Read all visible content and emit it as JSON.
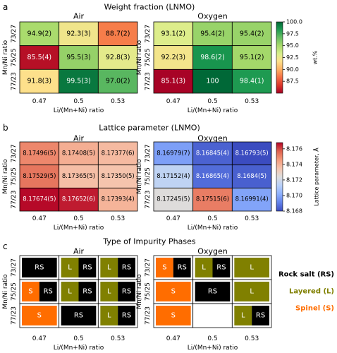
{
  "chart_data": [
    {
      "type": "heatmap",
      "panel_letter": "a",
      "title": "Weight fraction (LNMO)",
      "xlabel": "Li/(Mn+Ni) ratio",
      "ylabel": "Mn/Ni ratio",
      "x_categories": [
        "0.47",
        "0.5",
        "0.53"
      ],
      "y_categories": [
        "73/27",
        "75/25",
        "77/23"
      ],
      "colorbar": {
        "label": "wt.%",
        "range": [
          85.0,
          100.0
        ],
        "ticks": [
          "100.0",
          "97.5",
          "95.0",
          "92.5",
          "90.0",
          "87.5"
        ],
        "colormap": "RdYlGn"
      },
      "subplots": [
        {
          "name": "Air",
          "values": [
            [
              94.9,
              92.3,
              88.7
            ],
            [
              85.5,
              95.5,
              92.8
            ],
            [
              91.8,
              99.5,
              97.0
            ]
          ],
          "labels": [
            [
              "94.9(2)",
              "92.3(3)",
              "88.7(2)"
            ],
            [
              "85.5(4)",
              "95.5(3)",
              "92.8(3)"
            ],
            [
              "91.8(3)",
              "99.5(3)",
              "97.0(2)"
            ]
          ]
        },
        {
          "name": "Oxygen",
          "values": [
            [
              93.1,
              95.4,
              95.4
            ],
            [
              92.2,
              98.6,
              95.1
            ],
            [
              85.1,
              100,
              98.4
            ]
          ],
          "labels": [
            [
              "93.1(2)",
              "95.4(2)",
              "95.4(2)"
            ],
            [
              "92.2(3)",
              "98.6(2)",
              "95.1(2)"
            ],
            [
              "85.1(3)",
              "100",
              "98.4(1)"
            ]
          ]
        }
      ]
    },
    {
      "type": "heatmap",
      "panel_letter": "b",
      "title": "Lattice parameter (LNMO)",
      "xlabel": "Li/(Mn+Ni) ratio",
      "ylabel": "Mn/Ni ratio",
      "x_categories": [
        "0.47",
        "0.5",
        "0.53"
      ],
      "y_categories": [
        "73/27",
        "75/25",
        "77/23"
      ],
      "colorbar": {
        "label": "Lattice parameter, Å",
        "range": [
          8.168,
          8.1768
        ],
        "ticks": [
          "8.176",
          "8.174",
          "8.172",
          "8.170",
          "8.168"
        ],
        "colormap": "coolwarm"
      },
      "subplots": [
        {
          "name": "Air",
          "values": [
            [
              8.17496,
              8.17408,
              8.17377
            ],
            [
              8.17529,
              8.17365,
              8.1735
            ],
            [
              8.17674,
              8.17652,
              8.17393
            ]
          ],
          "labels": [
            [
              "8.17496(5)",
              "8.17408(5)",
              "8.17377(6)"
            ],
            [
              "8.17529(5)",
              "8.17365(5)",
              "8.17350(5)"
            ],
            [
              "8.17674(5)",
              "8.17652(6)",
              "8.17393(4)"
            ]
          ]
        },
        {
          "name": "Oxygen",
          "values": [
            [
              8.16979,
              8.16845,
              8.16793
            ],
            [
              8.17152,
              8.16865,
              8.1684
            ],
            [
              8.17245,
              8.17515,
              8.16991
            ]
          ],
          "labels": [
            [
              "8.16979(7)",
              "8.16845(4)",
              "8.16793(5)"
            ],
            [
              "8.17152(4)",
              "8.16865(4)",
              "8.1684(5)"
            ],
            [
              "8.17245(5)",
              "8.17515(6)",
              "8.16991(4)"
            ]
          ]
        }
      ]
    },
    {
      "type": "table",
      "panel_letter": "c",
      "title": "Type of Impurity Phases",
      "xlabel": "Li/(Mn+Ni) ratio",
      "ylabel": "Mn/Ni ratio",
      "x_categories": [
        "0.47",
        "0.5",
        "0.53"
      ],
      "y_categories": [
        "73/27",
        "75/25",
        "77/23"
      ],
      "phase_colors": {
        "RS": "#000000",
        "L": "#808000",
        "S": "#ff6d00"
      },
      "legend": [
        {
          "key": "RS",
          "label": "Rock salt (RS)",
          "color": "#000000"
        },
        {
          "key": "L",
          "label": "Layered (L)",
          "color": "#808000"
        },
        {
          "key": "S",
          "label": "Spinel (S)",
          "color": "#ff6d00"
        }
      ],
      "subplots": [
        {
          "name": "Air",
          "phases": [
            [
              [
                "RS"
              ],
              [
                "L",
                "RS"
              ],
              [
                "L",
                "RS"
              ]
            ],
            [
              [
                "S",
                "RS"
              ],
              [
                "L",
                "RS"
              ],
              [
                "L",
                "RS"
              ]
            ],
            [
              [
                "S"
              ],
              [
                "RS"
              ],
              [
                "L",
                "RS"
              ]
            ]
          ]
        },
        {
          "name": "Oxygen",
          "phases": [
            [
              [
                "S",
                "RS"
              ],
              [
                "L",
                "RS"
              ],
              [
                "L"
              ]
            ],
            [
              [
                "S"
              ],
              [
                "RS"
              ],
              [
                "L"
              ]
            ],
            [
              [
                "S"
              ],
              [],
              [
                "L",
                "RS"
              ]
            ]
          ]
        }
      ]
    }
  ],
  "colors": {
    "text": "#000000",
    "background": "#ffffff",
    "cell_border": "#000000"
  }
}
